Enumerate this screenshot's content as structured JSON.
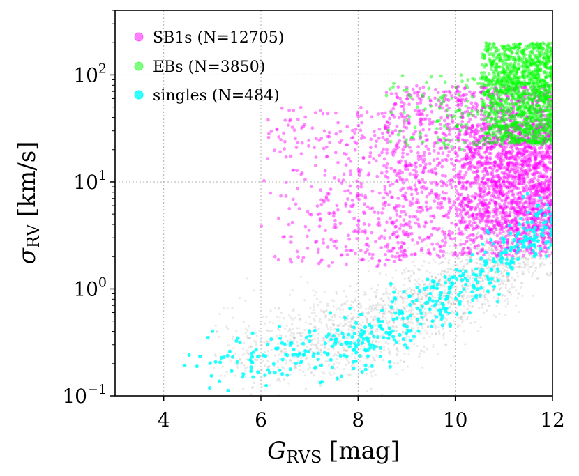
{
  "chart_data": {
    "type": "scatter",
    "title": "",
    "xlabel": {
      "main": "G",
      "sub": "RVS",
      "suffix": " [mag]"
    },
    "ylabel": {
      "main": "σ",
      "sub": "RV",
      "suffix": " [km/s]"
    },
    "xlim": [
      3,
      12
    ],
    "ylim": [
      0.1,
      400
    ],
    "yscale": "log",
    "grid": true,
    "legend_position": "top-left",
    "x_ticks": [
      {
        "value": 4,
        "label": "4"
      },
      {
        "value": 6,
        "label": "6"
      },
      {
        "value": 8,
        "label": "8"
      },
      {
        "value": 10,
        "label": "10"
      },
      {
        "value": 12,
        "label": "12"
      }
    ],
    "y_ticks": [
      {
        "value": 0.1,
        "base": "10",
        "exp": "−1"
      },
      {
        "value": 1,
        "base": "10",
        "exp": "0"
      },
      {
        "value": 10,
        "base": "10",
        "exp": "1"
      },
      {
        "value": 100,
        "base": "10",
        "exp": "2"
      }
    ],
    "series": [
      {
        "name": "background",
        "color": "#9a9a9a",
        "legend": false,
        "trend": [
          [
            5.0,
            0.25
          ],
          [
            6.0,
            0.27
          ],
          [
            7.0,
            0.32
          ],
          [
            8.0,
            0.42
          ],
          [
            9.0,
            0.65
          ],
          [
            10.0,
            1.05
          ],
          [
            11.0,
            1.9
          ],
          [
            12.0,
            4.5
          ]
        ],
        "spread": 0.22,
        "n": 2200
      },
      {
        "name": "SB1s (N=12705)",
        "color": "#ff00ff",
        "legend": true,
        "clusters": [
          {
            "x": [
              6.0,
              9.0
            ],
            "ylog": [
              0.2,
              1.7
            ],
            "n": 420
          },
          {
            "x": [
              8.5,
              12.0
            ],
            "ylog": [
              0.3,
              1.9
            ],
            "n": 1600
          },
          {
            "x": [
              10.0,
              12.0
            ],
            "ylog": [
              0.55,
              1.55
            ],
            "n": 900
          }
        ]
      },
      {
        "name": "EBs (N=3850)",
        "color": "#00ff00",
        "legend": true,
        "clusters": [
          {
            "x": [
              10.5,
              12.0
            ],
            "ylog": [
              1.35,
              2.3
            ],
            "n": 1300
          },
          {
            "x": [
              8.5,
              10.8
            ],
            "ylog": [
              1.3,
              2.0
            ],
            "n": 120
          }
        ]
      },
      {
        "name": "singles (N=484)",
        "color": "#00ffff",
        "legend": true,
        "trend": [
          [
            4.3,
            0.18
          ],
          [
            5.0,
            0.2
          ],
          [
            6.0,
            0.21
          ],
          [
            7.0,
            0.25
          ],
          [
            8.0,
            0.32
          ],
          [
            9.0,
            0.55
          ],
          [
            10.0,
            0.95
          ],
          [
            11.0,
            2.0
          ],
          [
            12.0,
            4.5
          ]
        ],
        "spread": 0.14,
        "n": 484
      }
    ]
  }
}
